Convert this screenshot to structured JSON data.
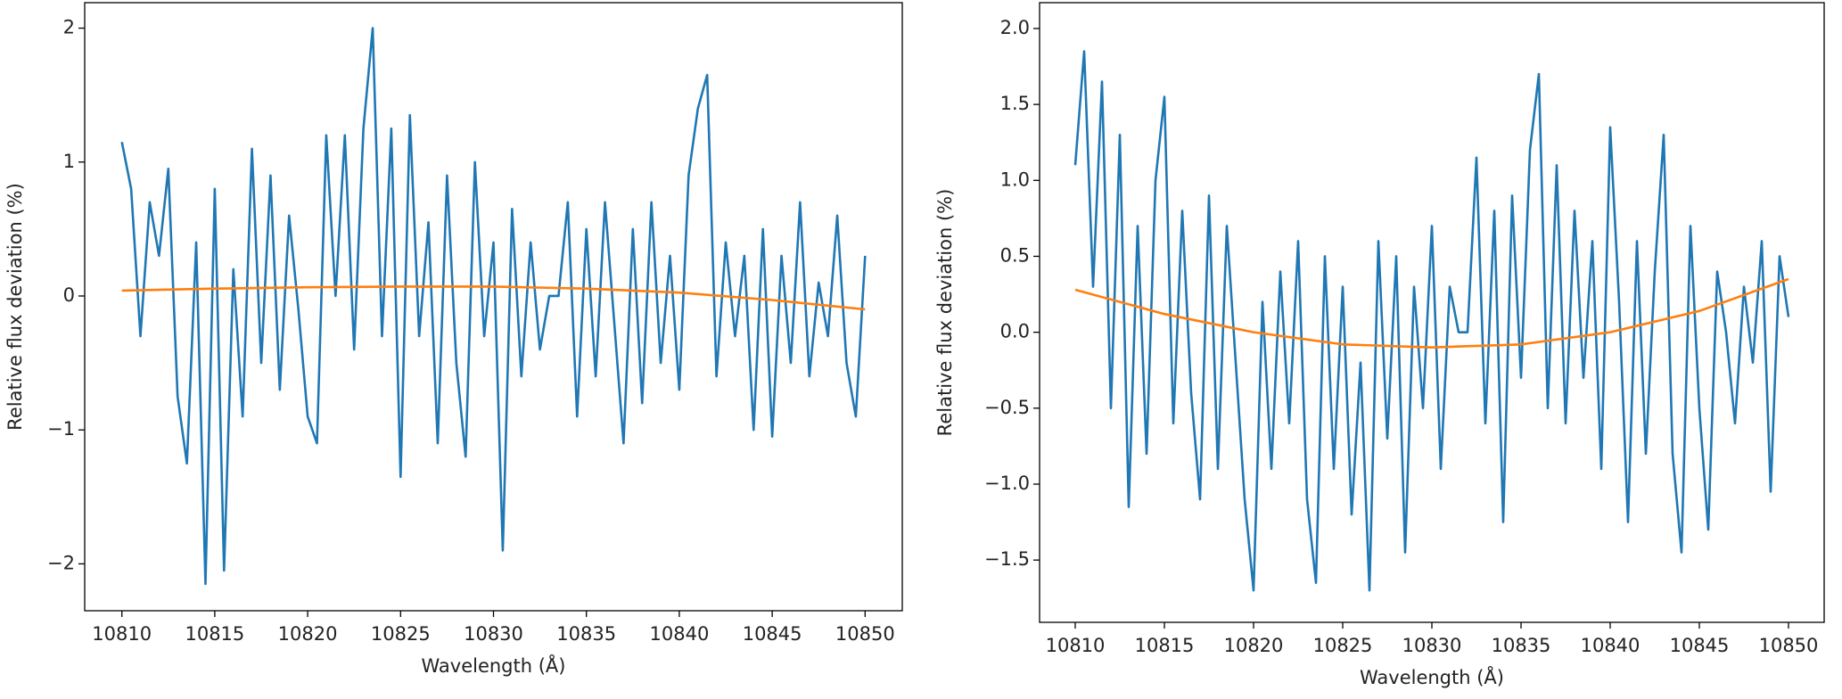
{
  "chart_data": [
    {
      "type": "line",
      "xlabel": "Wavelength (Å)",
      "ylabel": "Relative flux deviation (%)",
      "xlim": [
        10808,
        10852
      ],
      "ylim": [
        -2.35,
        2.19
      ],
      "xticks": [
        10810,
        10815,
        10820,
        10825,
        10830,
        10835,
        10840,
        10845,
        10850
      ],
      "yticks": [
        {
          "value": -2,
          "label": "−2"
        },
        {
          "value": -1,
          "label": "−1"
        },
        0,
        1,
        2
      ],
      "series": [
        {
          "color": "#1f77b4",
          "x": [
            10810,
            10810.5,
            10811,
            10811.5,
            10812,
            10812.5,
            10813,
            10813.5,
            10814,
            10814.5,
            10815,
            10815.5,
            10816,
            10816.5,
            10817,
            10817.5,
            10818,
            10818.5,
            10819,
            10819.5,
            10820,
            10820.5,
            10821,
            10821.5,
            10822,
            10822.5,
            10823,
            10823.5,
            10824,
            10824.5,
            10825,
            10825.5,
            10826,
            10826.5,
            10827,
            10827.5,
            10828,
            10828.5,
            10829,
            10829.5,
            10830,
            10830.5,
            10831,
            10831.5,
            10832,
            10832.5,
            10833,
            10833.5,
            10834,
            10834.5,
            10835,
            10835.5,
            10836,
            10836.5,
            10837,
            10837.5,
            10838,
            10838.5,
            10839,
            10839.5,
            10840,
            10840.5,
            10841,
            10841.5,
            10842,
            10842.5,
            10843,
            10843.5,
            10844,
            10844.5,
            10845,
            10845.5,
            10846,
            10846.5,
            10847,
            10847.5,
            10848,
            10848.5,
            10849,
            10849.5,
            10850
          ],
          "values": [
            1.15,
            0.8,
            -0.3,
            0.7,
            0.3,
            0.95,
            -0.75,
            -1.25,
            0.4,
            -2.15,
            0.8,
            -2.05,
            0.2,
            -0.9,
            1.1,
            -0.5,
            0.9,
            -0.7,
            0.6,
            -0.1,
            -0.9,
            -1.1,
            1.2,
            0.0,
            1.2,
            -0.4,
            1.25,
            2.0,
            -0.3,
            1.25,
            -1.35,
            1.35,
            -0.3,
            0.55,
            -1.1,
            0.9,
            -0.5,
            -1.2,
            1.0,
            -0.3,
            0.4,
            -1.9,
            0.65,
            -0.6,
            0.4,
            -0.4,
            0.0,
            0.0,
            0.7,
            -0.9,
            0.5,
            -0.6,
            0.7,
            -0.2,
            -1.1,
            0.5,
            -0.8,
            0.7,
            -0.5,
            0.3,
            -0.7,
            0.9,
            1.4,
            1.65,
            -0.6,
            0.4,
            -0.3,
            0.3,
            -1.0,
            0.5,
            -1.05,
            0.3,
            -0.5,
            0.7,
            -0.6,
            0.1,
            -0.3,
            0.6,
            -0.5,
            -0.9,
            0.3
          ]
        },
        {
          "color": "#ff7f0e",
          "x": [
            10810,
            10815,
            10820,
            10825,
            10830,
            10835,
            10840,
            10845,
            10850
          ],
          "values": [
            0.04,
            0.055,
            0.065,
            0.07,
            0.07,
            0.055,
            0.025,
            -0.03,
            -0.1
          ]
        }
      ]
    },
    {
      "type": "line",
      "xlabel": "Wavelength (Å)",
      "ylabel": "Relative flux deviation (%)",
      "xlim": [
        10808,
        10852
      ],
      "ylim": [
        -1.91,
        2.17
      ],
      "xticks": [
        10810,
        10815,
        10820,
        10825,
        10830,
        10835,
        10840,
        10845,
        10850
      ],
      "yticks": [
        {
          "value": -1.5,
          "label": "−1.5"
        },
        {
          "value": -1,
          "label": "−1.0"
        },
        {
          "value": -0.5,
          "label": "−0.5"
        },
        {
          "value": 0,
          "label": "0.0"
        },
        0.5,
        {
          "value": 1,
          "label": "1.0"
        },
        1.5,
        {
          "value": 2,
          "label": "2.0"
        }
      ],
      "series": [
        {
          "color": "#1f77b4",
          "x": [
            10810,
            10810.5,
            10811,
            10811.5,
            10812,
            10812.5,
            10813,
            10813.5,
            10814,
            10814.5,
            10815,
            10815.5,
            10816,
            10816.5,
            10817,
            10817.5,
            10818,
            10818.5,
            10819,
            10819.5,
            10820,
            10820.5,
            10821,
            10821.5,
            10822,
            10822.5,
            10823,
            10823.5,
            10824,
            10824.5,
            10825,
            10825.5,
            10826,
            10826.5,
            10827,
            10827.5,
            10828,
            10828.5,
            10829,
            10829.5,
            10830,
            10830.5,
            10831,
            10831.5,
            10832,
            10832.5,
            10833,
            10833.5,
            10834,
            10834.5,
            10835,
            10835.5,
            10836,
            10836.5,
            10837,
            10837.5,
            10838,
            10838.5,
            10839,
            10839.5,
            10840,
            10840.5,
            10841,
            10841.5,
            10842,
            10842.5,
            10843,
            10843.5,
            10844,
            10844.5,
            10845,
            10845.5,
            10846,
            10846.5,
            10847,
            10847.5,
            10848,
            10848.5,
            10849,
            10849.5,
            10850
          ],
          "values": [
            1.1,
            1.85,
            0.3,
            1.65,
            -0.5,
            1.3,
            -1.15,
            0.7,
            -0.8,
            1.0,
            1.55,
            -0.6,
            0.8,
            -0.4,
            -1.1,
            0.9,
            -0.9,
            0.7,
            -0.2,
            -1.1,
            -1.7,
            0.2,
            -0.9,
            0.4,
            -0.6,
            0.6,
            -1.1,
            -1.65,
            0.5,
            -0.9,
            0.3,
            -1.2,
            -0.2,
            -1.7,
            0.6,
            -0.7,
            0.5,
            -1.45,
            0.3,
            -0.5,
            0.7,
            -0.9,
            0.3,
            0.0,
            0.0,
            1.15,
            -0.6,
            0.8,
            -1.25,
            0.9,
            -0.3,
            1.2,
            1.7,
            -0.5,
            1.1,
            -0.6,
            0.8,
            -0.3,
            0.6,
            -0.9,
            1.35,
            0.2,
            -1.25,
            0.6,
            -0.8,
            0.4,
            1.3,
            -0.8,
            -1.45,
            0.7,
            -0.5,
            -1.3,
            0.4,
            0.0,
            -0.6,
            0.3,
            -0.2,
            0.6,
            -1.05,
            0.5,
            0.1
          ]
        },
        {
          "color": "#ff7f0e",
          "x": [
            10810,
            10815,
            10820,
            10825,
            10830,
            10835,
            10840,
            10845,
            10850
          ],
          "values": [
            0.28,
            0.12,
            0.0,
            -0.08,
            -0.1,
            -0.08,
            0.0,
            0.14,
            0.35
          ]
        }
      ]
    }
  ]
}
